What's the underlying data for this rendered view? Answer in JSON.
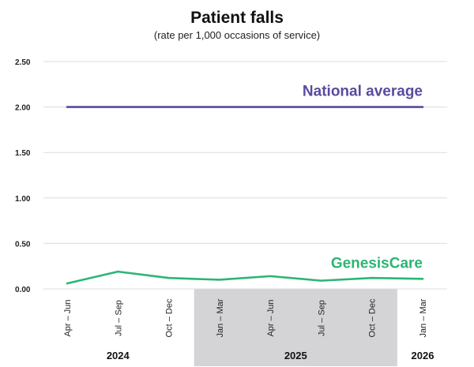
{
  "chart_data": {
    "type": "line",
    "title": "Patient falls",
    "subtitle": "(rate per 1,000 occasions of service)",
    "xlabel": "",
    "ylabel": "",
    "categories": [
      "Apr - Jun",
      "Jul - Sep",
      "Oct - Dec",
      "Jan - Mar",
      "Apr - Jun",
      "Jul - Sep",
      "Oct - Dec",
      "Jan - Mar"
    ],
    "year_groups": [
      {
        "label": "2024",
        "start": 0,
        "end": 2,
        "shaded": false
      },
      {
        "label": "2025",
        "start": 3,
        "end": 6,
        "shaded": true
      },
      {
        "label": "2026",
        "start": 7,
        "end": 7,
        "shaded": false
      }
    ],
    "ylim": [
      0,
      2.5
    ],
    "yticks": [
      "0.00",
      "0.50",
      "1.00",
      "1.50",
      "2.00",
      "2.50"
    ],
    "grid": true,
    "series": [
      {
        "name": "National average",
        "color": "#5b4a9e",
        "values": [
          2.0,
          2.0,
          2.0,
          2.0,
          2.0,
          2.0,
          2.0,
          2.0
        ]
      },
      {
        "name": "GenesisCare",
        "color": "#2bb673",
        "values": [
          0.06,
          0.19,
          0.12,
          0.1,
          0.14,
          0.09,
          0.12,
          0.11
        ]
      }
    ],
    "gridline_color": "#dcdcdc",
    "shade_color": "#d4d4d6"
  }
}
